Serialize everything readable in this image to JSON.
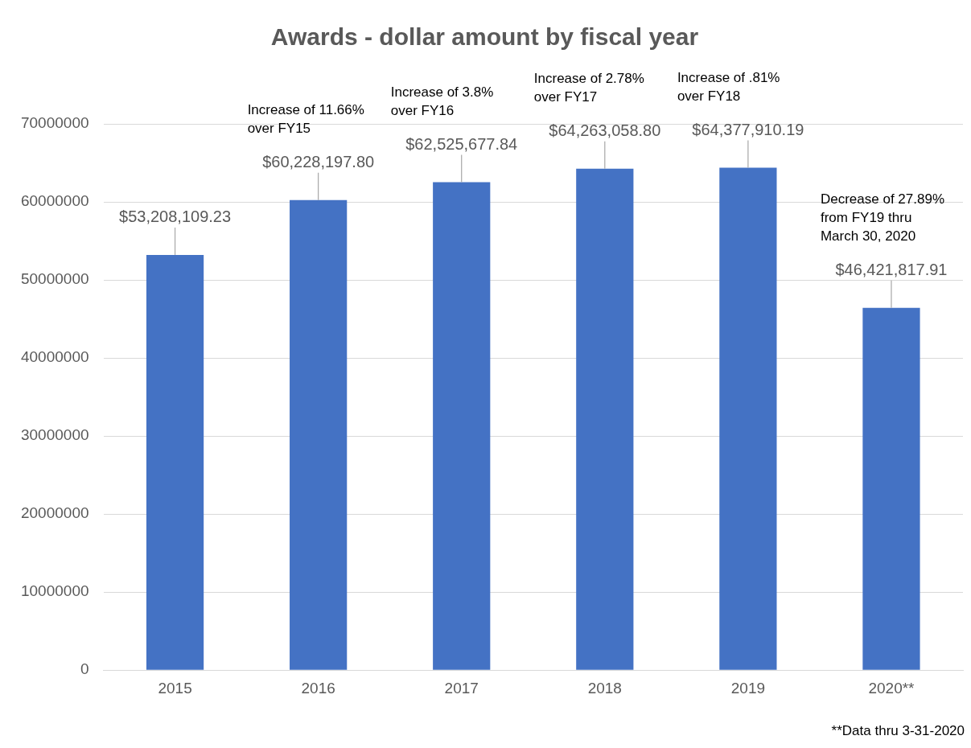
{
  "chart_data": {
    "type": "bar",
    "title": "Awards - dollar amount by fiscal year",
    "categories": [
      "2015",
      "2016",
      "2017",
      "2018",
      "2019",
      "2020**"
    ],
    "values": [
      53208109.23,
      60228197.8,
      62525677.84,
      64263058.8,
      64377910.19,
      46421817.91
    ],
    "value_labels": [
      "$53,208,109.23",
      "$60,228,197.80",
      "$62,525,677.84",
      "$64,263,058.80",
      "$64,377,910.19",
      "$46,421,817.91"
    ],
    "color": "#4472c4",
    "ylim": [
      0,
      70000000
    ],
    "yticks": [
      0,
      10000000,
      20000000,
      30000000,
      40000000,
      50000000,
      60000000,
      70000000
    ],
    "grid": "y",
    "annotations": [
      "Increase of 11.66% over FY15",
      "Increase of 3.8% over FY16",
      "Increase of 2.78% over FY17",
      "Increase of .81% over FY18",
      "Decrease of 27.89% from FY19 thru March 30, 2020",
      "**Data thru 3-31-2020"
    ]
  }
}
